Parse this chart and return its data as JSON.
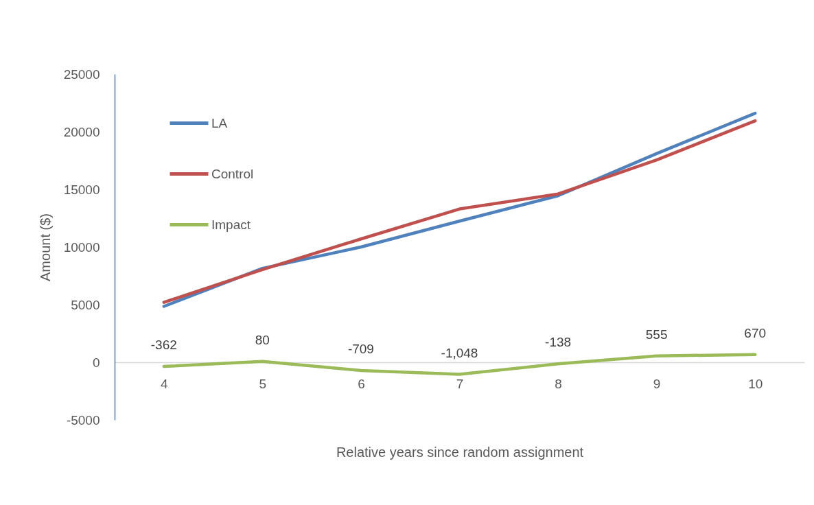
{
  "chart_data": {
    "type": "line",
    "xlabel": "Relative years since random assignment",
    "ylabel": "Amount ($)",
    "categories": [
      "4",
      "5",
      "6",
      "7",
      "8",
      "9",
      "10"
    ],
    "series": [
      {
        "name": "LA",
        "color": "#4f81bd",
        "values": [
          4850,
          8150,
          10000,
          12250,
          14450,
          18100,
          21600
        ]
      },
      {
        "name": "Control",
        "color": "#c0504d",
        "values": [
          5200,
          8050,
          10700,
          13300,
          14600,
          17550,
          20950
        ]
      },
      {
        "name": "Impact",
        "color": "#9bbb59",
        "values": [
          -362,
          80,
          -709,
          -1048,
          -138,
          555,
          670
        ],
        "value_labels": [
          "-362",
          "80",
          "-709",
          "-1,048",
          "-138",
          "555",
          "670"
        ]
      }
    ],
    "ylim": [
      -5000,
      25000
    ],
    "yticks": [
      -5000,
      0,
      5000,
      10000,
      15000,
      20000,
      25000
    ],
    "legend": "top left",
    "marker": "none"
  }
}
